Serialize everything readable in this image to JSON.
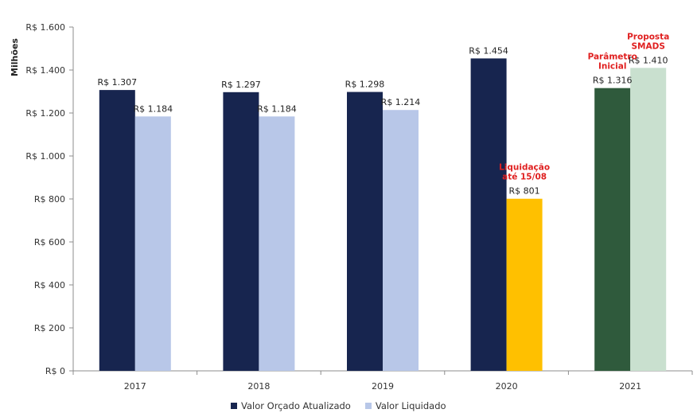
{
  "chart_data": {
    "type": "bar",
    "ylabel": "Milhões",
    "ylim": [
      0,
      1600
    ],
    "y_ticks": [
      {
        "value": 0,
        "label": "R$ 0"
      },
      {
        "value": 200,
        "label": "R$ 200"
      },
      {
        "value": 400,
        "label": "R$ 400"
      },
      {
        "value": 600,
        "label": "R$ 600"
      },
      {
        "value": 800,
        "label": "R$ 800"
      },
      {
        "value": 1000,
        "label": "R$ 1.000"
      },
      {
        "value": 1200,
        "label": "R$ 1.200"
      },
      {
        "value": 1400,
        "label": "R$ 1.400"
      },
      {
        "value": 1600,
        "label": "R$ 1.600"
      }
    ],
    "categories": [
      "2017",
      "2018",
      "2019",
      "2020",
      "2021"
    ],
    "series": [
      {
        "name": "Valor Orçado Atualizado",
        "color": "#17254f",
        "values": [
          1307,
          1297,
          1298,
          1454,
          1316
        ],
        "labels": [
          "R$ 1.307",
          "R$ 1.297",
          "R$ 1.298",
          "R$ 1.454",
          "R$ 1.316"
        ],
        "colors": [
          "#17254f",
          "#17254f",
          "#17254f",
          "#17254f",
          "#2f5a3c"
        ]
      },
      {
        "name": "Valor Liquidado",
        "color": "#b8c7e8",
        "values": [
          1184,
          1184,
          1214,
          801,
          1410
        ],
        "labels": [
          "R$ 1.184",
          "R$ 1.184",
          "R$ 1.214",
          "R$ 801",
          "R$ 1.410"
        ],
        "colors": [
          "#b8c7e8",
          "#b8c7e8",
          "#b8c7e8",
          "#ffc000",
          "#c9e0cf"
        ]
      }
    ],
    "annotations": [
      {
        "category": "2020",
        "series": 1,
        "lines": [
          "Liquidação",
          "até 15/08"
        ],
        "color": "#e02020"
      },
      {
        "category": "2021",
        "series": 0,
        "lines": [
          "Parâmetro",
          "Inicial"
        ],
        "color": "#e02020"
      },
      {
        "category": "2021",
        "series": 1,
        "lines": [
          "Proposta",
          "SMADS"
        ],
        "color": "#e02020"
      }
    ],
    "legend": {
      "position": "bottom"
    },
    "grid": false
  }
}
